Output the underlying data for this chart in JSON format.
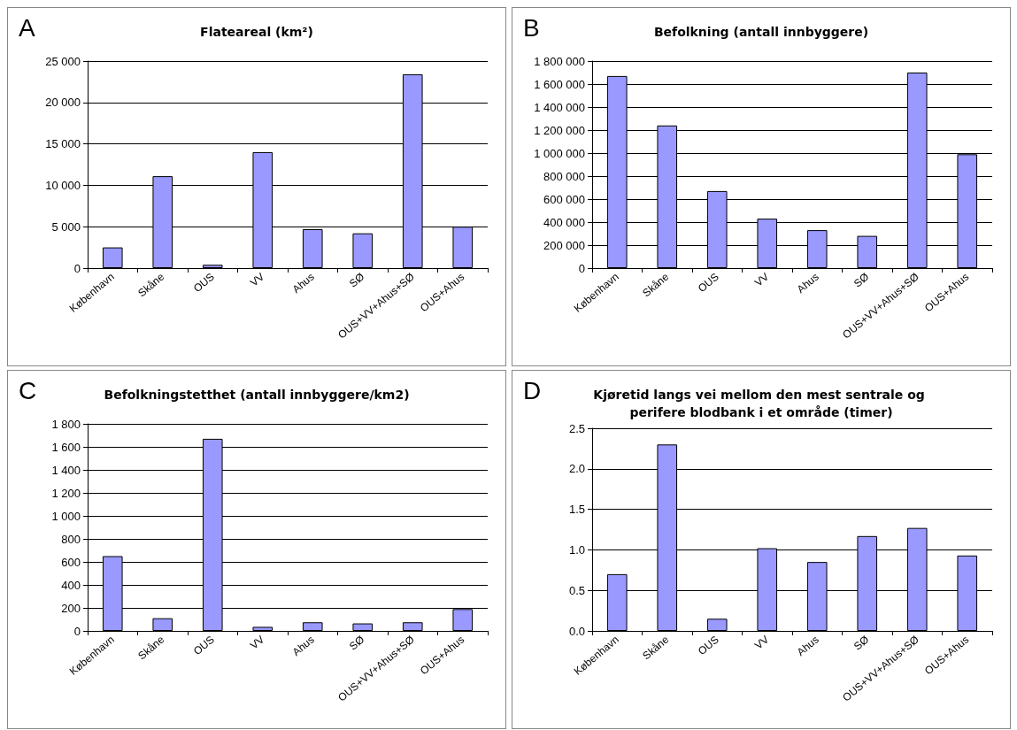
{
  "chart_data": [
    {
      "type": "bar",
      "title": "Flateareal (km²)",
      "annotations": [
        "A"
      ],
      "categories": [
        "København",
        "Skåne",
        "OUS",
        "VV",
        "Ahus",
        "SØ",
        "OUS+VV+Ahus+SØ",
        "OUS+Ahus"
      ],
      "values": [
        2500,
        11100,
        400,
        14000,
        4700,
        4200,
        23400,
        5000
      ],
      "color": "#9999ff",
      "ylim": [
        0,
        25000
      ],
      "yticks": [
        0,
        {
          "value": 5000,
          "label": "5 000"
        },
        {
          "value": 10000,
          "label": "10 000"
        },
        {
          "value": 15000,
          "label": "15 000"
        },
        {
          "value": 20000,
          "label": "20 000"
        },
        {
          "value": 25000,
          "label": "25 000"
        }
      ],
      "grid": "y"
    },
    {
      "type": "bar",
      "title": "Befolkning (antall innbyggere)",
      "annotations": [
        "B"
      ],
      "categories": [
        "København",
        "Skåne",
        "OUS",
        "VV",
        "Ahus",
        "SØ",
        "OUS+VV+Ahus+SØ",
        "OUS+Ahus"
      ],
      "values": [
        1670000,
        1240000,
        670000,
        430000,
        330000,
        280000,
        1700000,
        990000
      ],
      "color": "#9999ff",
      "ylim": [
        0,
        1800000
      ],
      "yticks": [
        0,
        {
          "value": 200000,
          "label": "200 000"
        },
        {
          "value": 400000,
          "label": "400 000"
        },
        {
          "value": 600000,
          "label": "600 000"
        },
        {
          "value": 800000,
          "label": "800 000"
        },
        {
          "value": 1000000,
          "label": "1 000 000"
        },
        {
          "value": 1200000,
          "label": "1 200 000"
        },
        {
          "value": 1400000,
          "label": "1 400 000"
        },
        {
          "value": 1600000,
          "label": "1 600 000"
        },
        {
          "value": 1800000,
          "label": "1 800 000"
        }
      ],
      "grid": "y"
    },
    {
      "type": "bar",
      "title": "Befolkningstetthet (antall innbyggere/km2)",
      "annotations": [
        "C"
      ],
      "categories": [
        "København",
        "Skåne",
        "OUS",
        "VV",
        "Ahus",
        "SØ",
        "OUS+VV+Ahus+SØ",
        "OUS+Ahus"
      ],
      "values": [
        650,
        110,
        1670,
        35,
        75,
        65,
        75,
        190
      ],
      "color": "#9999ff",
      "ylim": [
        0,
        1800
      ],
      "yticks": [
        0,
        200,
        400,
        600,
        800,
        {
          "value": 1000,
          "label": "1 000"
        },
        {
          "value": 1200,
          "label": "1 200"
        },
        {
          "value": 1400,
          "label": "1 400"
        },
        {
          "value": 1600,
          "label": "1 600"
        },
        {
          "value": 1800,
          "label": "1 800"
        }
      ],
      "grid": "y"
    },
    {
      "type": "bar",
      "title": "Kjøretid langs vei mellom den mest sentrale og perifere blodbank i et område (timer)",
      "annotations": [
        "D"
      ],
      "categories": [
        "København",
        "Skåne",
        "OUS",
        "VV",
        "Ahus",
        "SØ",
        "OUS+VV+Ahus+SØ",
        "OUS+Ahus"
      ],
      "values": [
        0.7,
        2.3,
        0.15,
        1.02,
        0.85,
        1.17,
        1.27,
        0.93
      ],
      "color": "#9999ff",
      "ylim": [
        0,
        2.5
      ],
      "yticks": [
        {
          "value": 0,
          "label": "0.0"
        },
        {
          "value": 0.5,
          "label": "0.5"
        },
        {
          "value": 1,
          "label": "1.0"
        },
        {
          "value": 1.5,
          "label": "1.5"
        },
        {
          "value": 2,
          "label": "2.0"
        },
        {
          "value": 2.5,
          "label": "2.5"
        }
      ],
      "grid": "y"
    }
  ]
}
